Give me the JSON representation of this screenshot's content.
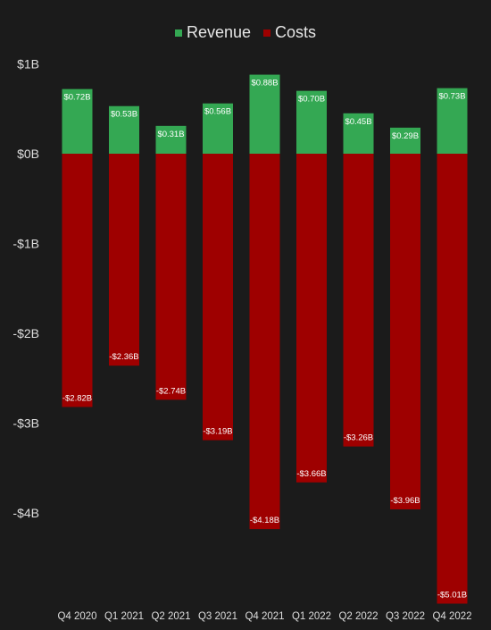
{
  "chart_data": {
    "type": "bar",
    "stacked": true,
    "categories": [
      "Q4 2020",
      "Q1 2021",
      "Q2 2021",
      "Q3 2021",
      "Q4 2021",
      "Q1 2022",
      "Q2 2022",
      "Q3 2022",
      "Q4 2022"
    ],
    "series": [
      {
        "name": "Revenue",
        "color": "#34a853",
        "values": [
          0.72,
          0.53,
          0.31,
          0.56,
          0.88,
          0.7,
          0.45,
          0.29,
          0.73
        ],
        "labels": [
          "$0.72B",
          "$0.53B",
          "$0.31B",
          "$0.56B",
          "$0.88B",
          "$0.70B",
          "$0.45B",
          "$0.29B",
          "$0.73B"
        ]
      },
      {
        "name": "Costs",
        "color": "#9e0000",
        "values": [
          -2.82,
          -2.36,
          -2.74,
          -3.19,
          -4.18,
          -3.66,
          -3.26,
          -3.96,
          -5.01
        ],
        "labels": [
          "-$2.82B",
          "-$2.36B",
          "-$2.74B",
          "-$3.19B",
          "-$4.18B",
          "-$3.66B",
          "-$3.26B",
          "-$3.96B",
          "-$5.01B"
        ]
      }
    ],
    "yticks": [
      1,
      0,
      -1,
      -2,
      -3,
      -4
    ],
    "ytick_labels": [
      "$1B",
      "$0B",
      "-$1B",
      "-$2B",
      "-$3B",
      "-$4B"
    ],
    "ylim": [
      -5.1,
      1.0
    ],
    "legend_position": "top-center",
    "grid": false,
    "title": "",
    "xlabel": "",
    "ylabel": ""
  }
}
